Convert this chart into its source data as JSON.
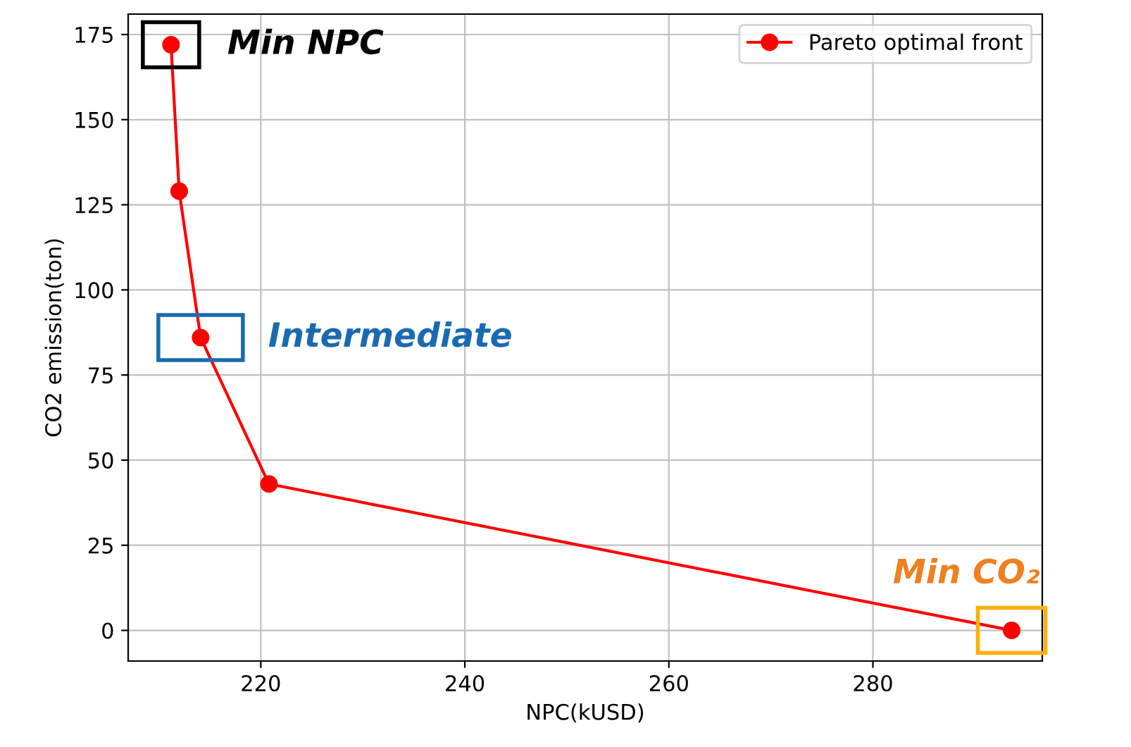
{
  "chart_data": {
    "type": "line",
    "xlabel": "NPC(kUSD)",
    "ylabel": "CO2 emission(ton)",
    "x": [
      211.2,
      212.0,
      214.1,
      220.8,
      293.6
    ],
    "series": [
      {
        "name": "Pareto optimal front",
        "color": "#ff0000",
        "values": [
          172,
          129,
          86,
          43,
          0
        ]
      }
    ],
    "xlim": [
      207,
      296.6
    ],
    "xticks": [
      220,
      240,
      260,
      280
    ],
    "ylim": [
      -9,
      181
    ],
    "yticks": [
      0,
      25,
      50,
      75,
      100,
      125,
      150,
      175
    ],
    "grid": true,
    "legend": "top right",
    "marker": "circle",
    "line_style": "solid",
    "annotations": [
      {
        "text": "Min NPC",
        "x": 211.2,
        "y": 172
      },
      {
        "text": "Intermediate",
        "x": 214.1,
        "y": 86
      },
      {
        "text": "Min CO₂",
        "x": 293.6,
        "y": 0
      }
    ]
  }
}
